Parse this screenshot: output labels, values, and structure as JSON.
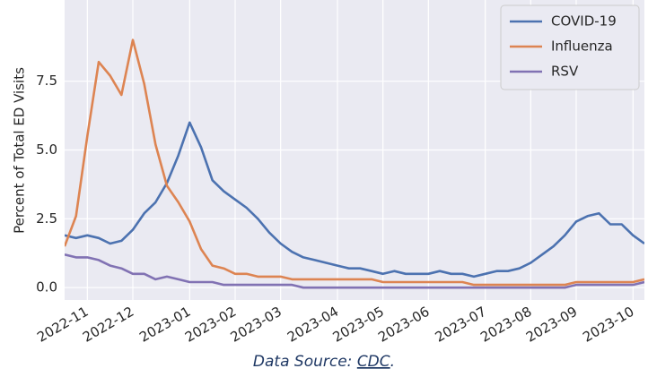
{
  "chart_data": {
    "type": "line",
    "y_label": "Percent of Total ED Visits",
    "categories": [
      null,
      null,
      "2022-11",
      null,
      null,
      null,
      "2022-12",
      null,
      null,
      null,
      null,
      "2023-01",
      null,
      null,
      null,
      "2023-02",
      null,
      null,
      null,
      "2023-03",
      null,
      null,
      null,
      null,
      "2023-04",
      null,
      null,
      null,
      "2023-05",
      null,
      null,
      null,
      "2023-06",
      null,
      null,
      null,
      null,
      "2023-07",
      null,
      null,
      null,
      "2023-08",
      null,
      null,
      null,
      "2023-09",
      null,
      null,
      null,
      null,
      "2023-10",
      null
    ],
    "series": [
      {
        "name": "COVID-19",
        "color": "#4c72b0",
        "values": [
          1.9,
          1.8,
          1.9,
          1.8,
          1.6,
          1.7,
          2.1,
          2.7,
          3.1,
          3.8,
          4.8,
          6.0,
          5.1,
          3.9,
          3.5,
          3.2,
          2.9,
          2.5,
          2.0,
          1.6,
          1.3,
          1.1,
          1.0,
          0.9,
          0.8,
          0.7,
          0.7,
          0.6,
          0.5,
          0.6,
          0.5,
          0.5,
          0.5,
          0.6,
          0.5,
          0.5,
          0.4,
          0.5,
          0.6,
          0.6,
          0.7,
          0.9,
          1.2,
          1.5,
          1.9,
          2.4,
          2.6,
          2.7,
          2.3,
          2.3,
          1.9,
          1.6
        ]
      },
      {
        "name": "Influenza",
        "color": "#dd8452",
        "values": [
          1.5,
          2.6,
          5.5,
          8.2,
          7.7,
          7.0,
          9.0,
          7.4,
          5.2,
          3.7,
          3.1,
          2.4,
          1.4,
          0.8,
          0.7,
          0.5,
          0.5,
          0.4,
          0.4,
          0.4,
          0.3,
          0.3,
          0.3,
          0.3,
          0.3,
          0.3,
          0.3,
          0.3,
          0.2,
          0.2,
          0.2,
          0.2,
          0.2,
          0.2,
          0.2,
          0.2,
          0.1,
          0.1,
          0.1,
          0.1,
          0.1,
          0.1,
          0.1,
          0.1,
          0.1,
          0.2,
          0.2,
          0.2,
          0.2,
          0.2,
          0.2,
          0.3
        ]
      },
      {
        "name": "RSV",
        "color": "#8172b3",
        "values": [
          1.2,
          1.1,
          1.1,
          1.0,
          0.8,
          0.7,
          0.5,
          0.5,
          0.3,
          0.4,
          0.3,
          0.2,
          0.2,
          0.2,
          0.1,
          0.1,
          0.1,
          0.1,
          0.1,
          0.1,
          0.1,
          0.0,
          0.0,
          0.0,
          0.0,
          0.0,
          0.0,
          0.0,
          0.0,
          0.0,
          0.0,
          0.0,
          0.0,
          0.0,
          0.0,
          0.0,
          0.0,
          0.0,
          0.0,
          0.0,
          0.0,
          0.0,
          0.0,
          0.0,
          0.0,
          0.1,
          0.1,
          0.1,
          0.1,
          0.1,
          0.1,
          0.2
        ]
      }
    ],
    "ylim": [
      -0.45,
      10.45
    ],
    "yticks": [
      {
        "value": 0,
        "label": "0.0"
      },
      {
        "value": 2.5,
        "label": "2.5"
      },
      {
        "value": 5,
        "label": "5.0"
      },
      {
        "value": 7.5,
        "label": "7.5"
      }
    ],
    "grid": true,
    "legend": "upper right",
    "source_label": "Data Source:",
    "source_link": "CDC",
    "source_end": "."
  }
}
